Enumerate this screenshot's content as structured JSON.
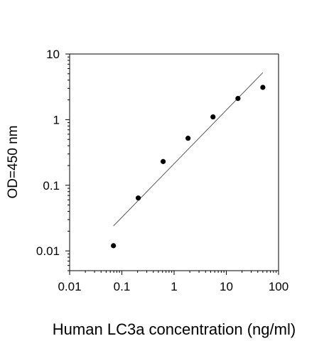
{
  "chart_data": {
    "type": "scatter",
    "title": "",
    "xlabel": "Human LC3a concentration (ng/ml)",
    "ylabel": "OD=450 nm",
    "x_scale": "log",
    "y_scale": "log",
    "xlim": [
      0.01,
      100
    ],
    "ylim": [
      0.005,
      10
    ],
    "x_ticks": [
      0.01,
      0.1,
      1,
      10,
      100
    ],
    "x_tick_labels": [
      "0.01",
      "0.1",
      "1",
      "10",
      "100"
    ],
    "y_ticks": [
      0.01,
      0.1,
      1,
      10
    ],
    "y_tick_labels": [
      "0.01",
      "0.1",
      "1",
      "10"
    ],
    "grid": false,
    "legend": "none",
    "series": [
      {
        "type": "scatter",
        "x": [
          0.069,
          0.206,
          0.617,
          1.85,
          5.56,
          16.7,
          50
        ],
        "y": [
          0.012,
          0.064,
          0.23,
          0.52,
          1.1,
          2.1,
          3.1
        ]
      },
      {
        "type": "line",
        "x": [
          0.069,
          50
        ],
        "y": [
          0.024,
          5.2
        ]
      }
    ],
    "colors": {
      "axis": "#000000",
      "marker": "#000000",
      "fit_line": "#333333"
    }
  }
}
